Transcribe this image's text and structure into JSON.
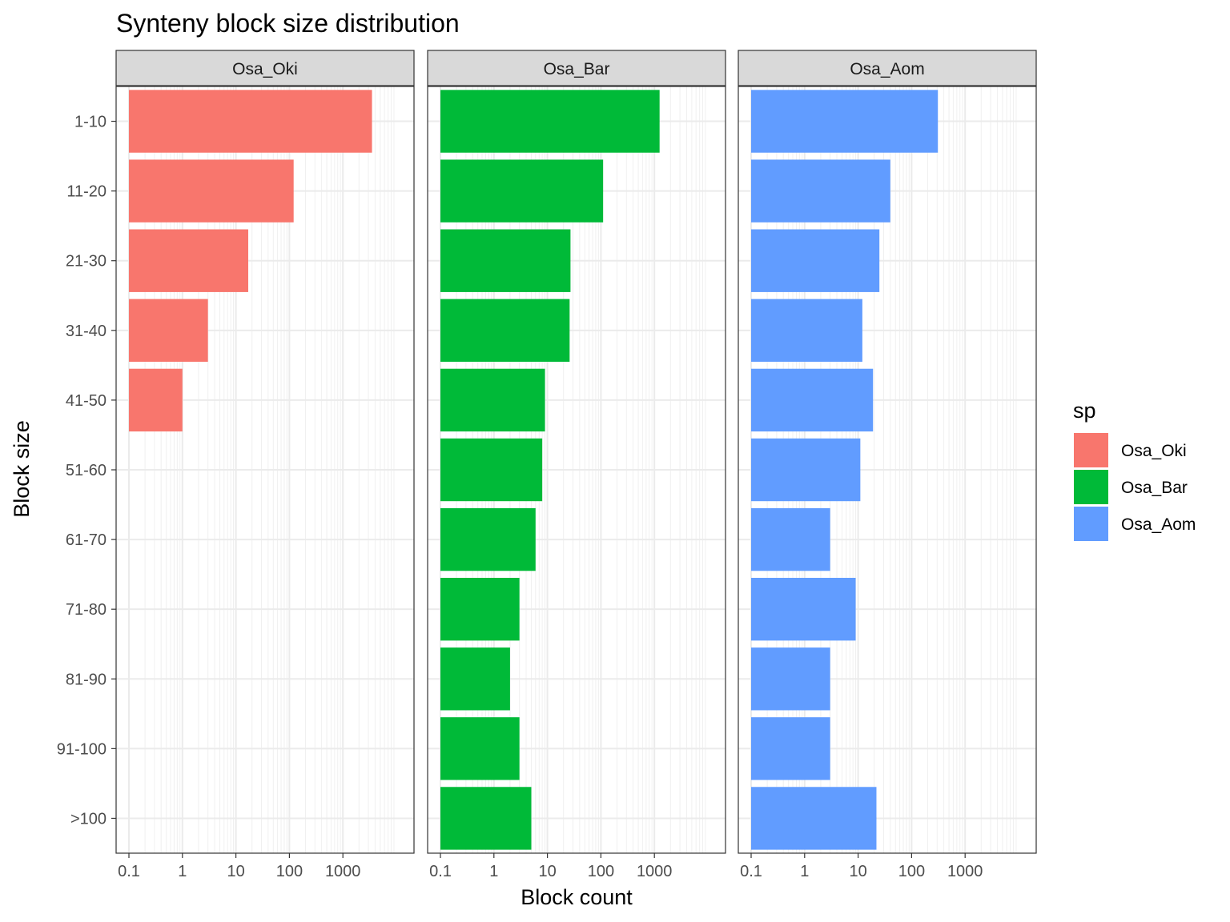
{
  "chart_data": {
    "type": "bar",
    "orientation": "horizontal",
    "facet": "sp",
    "title": "Synteny block size distribution",
    "xlabel": "Block count",
    "ylabel": "Block size",
    "x_scale": "log10",
    "xlim": [
      0.1,
      10000
    ],
    "x_ticks": [
      "0.1",
      "1",
      "10",
      "100",
      "1000"
    ],
    "categories": [
      "1-10",
      "11-20",
      "21-30",
      "31-40",
      "41-50",
      "51-60",
      "61-70",
      "71-80",
      "81-90",
      "91-100",
      ">100"
    ],
    "series": [
      {
        "name": "Osa_Oki",
        "color": "#F8766D",
        "values": [
          3500,
          120,
          17,
          3,
          1,
          null,
          null,
          null,
          null,
          null,
          null
        ]
      },
      {
        "name": "Osa_Bar",
        "color": "#00BA38",
        "values": [
          1250,
          110,
          27,
          26,
          9,
          8,
          6,
          3,
          2,
          3,
          5
        ]
      },
      {
        "name": "Osa_Aom",
        "color": "#619CFF",
        "values": [
          310,
          40,
          25,
          12,
          19,
          11,
          3,
          9,
          3,
          3,
          22
        ]
      }
    ],
    "legend": {
      "title": "sp",
      "position": "right"
    },
    "grid": true,
    "theme": "bw"
  }
}
